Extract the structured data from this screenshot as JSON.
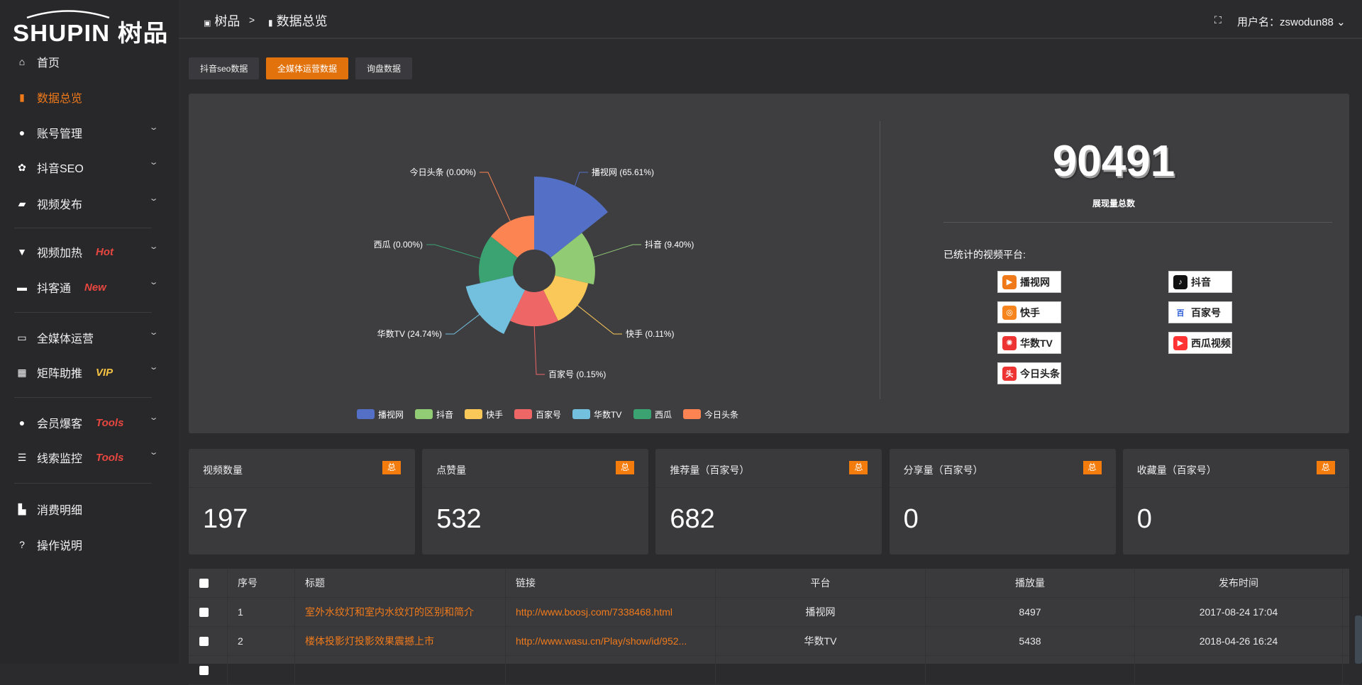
{
  "logo": {
    "text": "SHUPIN 树品"
  },
  "sidebar": {
    "items": [
      {
        "label": "首页",
        "icon": "home-icon"
      },
      {
        "label": "数据总览",
        "icon": "bar-chart-icon",
        "active": true
      },
      {
        "label": "账号管理",
        "icon": "user-icon"
      },
      {
        "label": "抖音SEO",
        "icon": "gear-icon"
      },
      {
        "label": "视频发布",
        "icon": "camera-icon"
      },
      {
        "label": "视频加热",
        "icon": "monitor-icon",
        "badge": "Hot"
      },
      {
        "label": "抖客通",
        "icon": "chat-icon",
        "badge": "New"
      },
      {
        "label": "全媒体运营",
        "icon": "desktop-icon"
      },
      {
        "label": "矩阵助推",
        "icon": "grid-icon",
        "badge": "VIP"
      },
      {
        "label": "会员爆客",
        "icon": "user-icon",
        "badge": "Tools"
      },
      {
        "label": "线索监控",
        "icon": "sliders-icon",
        "badge": "Tools"
      },
      {
        "label": "消费明细",
        "icon": "wallet-icon"
      },
      {
        "label": "操作说明",
        "icon": "help-icon"
      }
    ]
  },
  "header": {
    "crumb1": "树品",
    "sep": ">",
    "crumb2": "数据总览",
    "user": "用户名：zswodun88"
  },
  "tabs": [
    "抖音seo数据",
    "全媒体运营数据",
    "询盘数据"
  ],
  "summary": {
    "total": "90491",
    "total_label": "展现量总数",
    "platforms_label": "已统计的视频平台:",
    "platforms": [
      "播视网",
      "抖音",
      "快手",
      "百家号",
      "华数TV",
      "西瓜视频",
      "今日头条"
    ]
  },
  "chart_data": {
    "type": "pie",
    "subtype": "nightingale-rose",
    "legend": "bottom",
    "categories": [
      "播视网",
      "抖音",
      "快手",
      "百家号",
      "华数TV",
      "西瓜",
      "今日头条"
    ],
    "values": [
      65.61,
      9.4,
      0.11,
      0.15,
      24.74,
      0.0,
      0.0
    ],
    "labels": [
      "播视网 (65.61%)",
      "抖音 (9.40%)",
      "快手 (0.11%)",
      "百家号 (0.15%)",
      "华数TV (24.74%)",
      "西瓜 (0.00%)",
      "今日头条 (0.00%)"
    ],
    "colors": [
      "#5470c6",
      "#91cc75",
      "#fac858",
      "#ee6666",
      "#73c0de",
      "#3ba272",
      "#fc8452"
    ]
  },
  "cards": [
    {
      "title": "视频数量",
      "badge": "总",
      "value": "197"
    },
    {
      "title": "点赞量",
      "badge": "总",
      "value": "532"
    },
    {
      "title": "推荐量（百家号）",
      "badge": "总",
      "value": "682"
    },
    {
      "title": "分享量（百家号）",
      "badge": "总",
      "value": "0"
    },
    {
      "title": "收藏量（百家号）",
      "badge": "总",
      "value": "0"
    }
  ],
  "table": {
    "columns": [
      "序号",
      "标题",
      "链接",
      "平台",
      "播放量",
      "发布时间"
    ],
    "rows": [
      {
        "no": "1",
        "title": "室外水纹灯和室内水纹灯的区别和简介",
        "link": "http://www.boosj.com/7338468.html",
        "platform": "播视网",
        "plays": "8497",
        "time": "2017-08-24 17:04"
      },
      {
        "no": "2",
        "title": "楼体投影灯投影效果震撼上市",
        "link": "http://www.wasu.cn/Play/show/id/952...",
        "platform": "华数TV",
        "plays": "5438",
        "time": "2018-04-26 16:24"
      }
    ]
  }
}
